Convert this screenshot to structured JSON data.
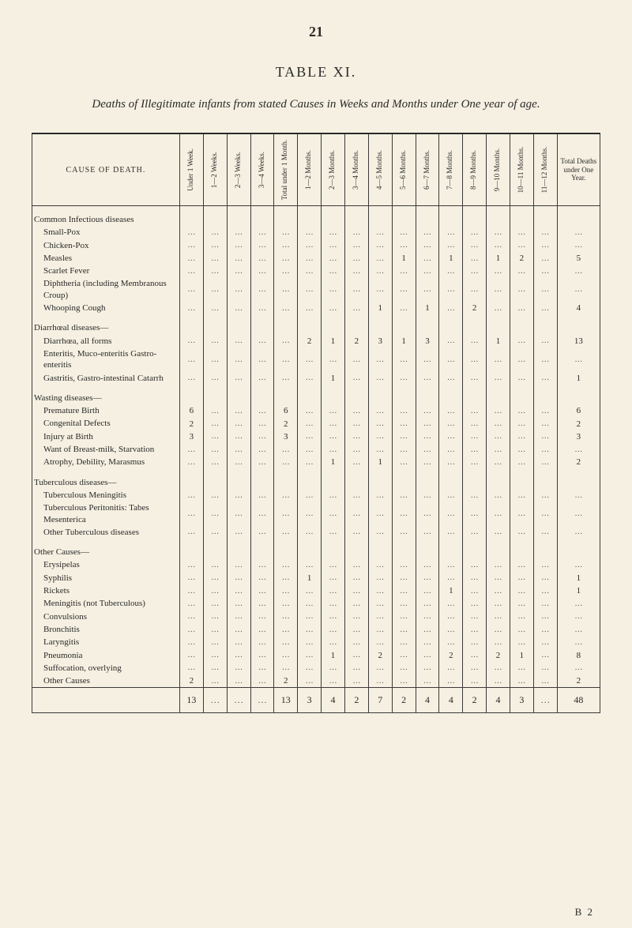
{
  "page_number": "21",
  "table_title": "TABLE XI.",
  "subtitle": "Deaths of Illegitimate infants from stated Causes in Weeks and Months under One year of age.",
  "footer": "B 2",
  "table": {
    "cause_header": "CAUSE OF DEATH.",
    "columns": [
      "Under 1 Week.",
      "1—2 Weeks.",
      "2—3 Weeks.",
      "3—4 Weeks.",
      "Total under 1 Month.",
      "1—2 Months.",
      "2—3 Months.",
      "3—4 Months.",
      "4—5 Months.",
      "5—6 Months.",
      "6—7 Months.",
      "7—8 Months.",
      "8—9 Months.",
      "9—10 Months.",
      "10—11 Months.",
      "11—12 Months."
    ],
    "total_col": "Total Deaths under One Year.",
    "groups": [
      {
        "label": "Common Infectious diseases",
        "rows": [
          {
            "label": "Small-Pox",
            "cells": [
              "…",
              "…",
              "…",
              "…",
              "…",
              "…",
              "…",
              "…",
              "…",
              "…",
              "…",
              "…",
              "…",
              "…",
              "…",
              "…"
            ],
            "total": "…"
          },
          {
            "label": "Chicken-Pox",
            "cells": [
              "…",
              "…",
              "…",
              "…",
              "…",
              "…",
              "…",
              "…",
              "…",
              "…",
              "…",
              "…",
              "…",
              "…",
              "…",
              "…"
            ],
            "total": "…"
          },
          {
            "label": "Measles",
            "cells": [
              "…",
              "…",
              "…",
              "…",
              "…",
              "…",
              "…",
              "…",
              "…",
              "1",
              "…",
              "1",
              "…",
              "1",
              "2",
              "…"
            ],
            "total": "5"
          },
          {
            "label": "Scarlet Fever",
            "cells": [
              "…",
              "…",
              "…",
              "…",
              "…",
              "…",
              "…",
              "…",
              "…",
              "…",
              "…",
              "…",
              "…",
              "…",
              "…",
              "…"
            ],
            "total": "…"
          },
          {
            "label": "Diphtheria (including Membranous Croup)",
            "cells": [
              "…",
              "…",
              "…",
              "…",
              "…",
              "…",
              "…",
              "…",
              "…",
              "…",
              "…",
              "…",
              "…",
              "…",
              "…",
              "…"
            ],
            "total": "…"
          },
          {
            "label": "Whooping Cough",
            "cells": [
              "…",
              "…",
              "…",
              "…",
              "…",
              "…",
              "…",
              "…",
              "1",
              "…",
              "1",
              "…",
              "2",
              "…",
              "…",
              "…"
            ],
            "total": "4"
          }
        ]
      },
      {
        "label": "Diarrhœal diseases—",
        "rows": [
          {
            "label": "Diarrhœa, all forms",
            "cells": [
              "…",
              "…",
              "…",
              "…",
              "…",
              "2",
              "1",
              "2",
              "3",
              "1",
              "3",
              "…",
              "…",
              "1",
              "…",
              "…"
            ],
            "total": "13"
          },
          {
            "label": "Enteritis, Muco-enteritis Gastro-enteritis",
            "cells": [
              "…",
              "…",
              "…",
              "…",
              "…",
              "…",
              "…",
              "…",
              "…",
              "…",
              "…",
              "…",
              "…",
              "…",
              "…",
              "…"
            ],
            "total": "…"
          },
          {
            "label": "Gastritis, Gastro-intestinal Catarrh",
            "cells": [
              "…",
              "…",
              "…",
              "…",
              "…",
              "…",
              "1",
              "…",
              "…",
              "…",
              "…",
              "…",
              "…",
              "…",
              "…",
              "…"
            ],
            "total": "1"
          }
        ]
      },
      {
        "label": "Wasting diseases—",
        "rows": [
          {
            "label": "Premature Birth",
            "cells": [
              "6",
              "…",
              "…",
              "…",
              "6",
              "…",
              "…",
              "…",
              "…",
              "…",
              "…",
              "…",
              "…",
              "…",
              "…",
              "…"
            ],
            "total": "6"
          },
          {
            "label": "Congenital Defects",
            "cells": [
              "2",
              "…",
              "…",
              "…",
              "2",
              "…",
              "…",
              "…",
              "…",
              "…",
              "…",
              "…",
              "…",
              "…",
              "…",
              "…"
            ],
            "total": "2"
          },
          {
            "label": "Injury at Birth",
            "cells": [
              "3",
              "…",
              "…",
              "…",
              "3",
              "…",
              "…",
              "…",
              "…",
              "…",
              "…",
              "…",
              "…",
              "…",
              "…",
              "…"
            ],
            "total": "3"
          },
          {
            "label": "Want of Breast-milk, Starvation",
            "cells": [
              "…",
              "…",
              "…",
              "…",
              "…",
              "…",
              "…",
              "…",
              "…",
              "…",
              "…",
              "…",
              "…",
              "…",
              "…",
              "…"
            ],
            "total": "…"
          },
          {
            "label": "Atrophy, Debility, Marasmus",
            "cells": [
              "…",
              "…",
              "…",
              "…",
              "…",
              "…",
              "1",
              "…",
              "1",
              "…",
              "…",
              "…",
              "…",
              "…",
              "…",
              "…"
            ],
            "total": "2"
          }
        ]
      },
      {
        "label": "Tuberculous diseases—",
        "rows": [
          {
            "label": "Tuberculous Meningitis",
            "cells": [
              "…",
              "…",
              "…",
              "…",
              "…",
              "…",
              "…",
              "…",
              "…",
              "…",
              "…",
              "…",
              "…",
              "…",
              "…",
              "…"
            ],
            "total": "…"
          },
          {
            "label": "Tuberculous Peritonitis: Tabes Mesenterica",
            "cells": [
              "…",
              "…",
              "…",
              "…",
              "…",
              "…",
              "…",
              "…",
              "…",
              "…",
              "…",
              "…",
              "…",
              "…",
              "…",
              "…"
            ],
            "total": "…"
          },
          {
            "label": "Other Tuberculous diseases",
            "cells": [
              "…",
              "…",
              "…",
              "…",
              "…",
              "…",
              "…",
              "…",
              "…",
              "…",
              "…",
              "…",
              "…",
              "…",
              "…",
              "…"
            ],
            "total": "…"
          }
        ]
      },
      {
        "label": "Other Causes—",
        "rows": [
          {
            "label": "Erysipelas",
            "cells": [
              "…",
              "…",
              "…",
              "…",
              "…",
              "…",
              "…",
              "…",
              "…",
              "…",
              "…",
              "…",
              "…",
              "…",
              "…",
              "…"
            ],
            "total": "…"
          },
          {
            "label": "Syphilis",
            "cells": [
              "…",
              "…",
              "…",
              "…",
              "…",
              "1",
              "…",
              "…",
              "…",
              "…",
              "…",
              "…",
              "…",
              "…",
              "…",
              "…"
            ],
            "total": "1"
          },
          {
            "label": "Rickets",
            "cells": [
              "…",
              "…",
              "…",
              "…",
              "…",
              "…",
              "…",
              "…",
              "…",
              "…",
              "…",
              "1",
              "…",
              "…",
              "…",
              "…"
            ],
            "total": "1"
          },
          {
            "label": "Meningitis (not Tuberculous)",
            "cells": [
              "…",
              "…",
              "…",
              "…",
              "…",
              "…",
              "…",
              "…",
              "…",
              "…",
              "…",
              "…",
              "…",
              "…",
              "…",
              "…"
            ],
            "total": "…"
          },
          {
            "label": "Convulsions",
            "cells": [
              "…",
              "…",
              "…",
              "…",
              "…",
              "…",
              "…",
              "…",
              "…",
              "…",
              "…",
              "…",
              "…",
              "…",
              "…",
              "…"
            ],
            "total": "…"
          },
          {
            "label": "Bronchitis",
            "cells": [
              "…",
              "…",
              "…",
              "…",
              "…",
              "…",
              "…",
              "…",
              "…",
              "…",
              "…",
              "…",
              "…",
              "…",
              "…",
              "…"
            ],
            "total": "…"
          },
          {
            "label": "Laryngitis",
            "cells": [
              "…",
              "…",
              "…",
              "…",
              "…",
              "…",
              "…",
              "…",
              "…",
              "…",
              "…",
              "…",
              "…",
              "…",
              "…",
              "…"
            ],
            "total": "…"
          },
          {
            "label": "Pneumonia",
            "cells": [
              "…",
              "…",
              "…",
              "…",
              "…",
              "…",
              "1",
              "…",
              "2",
              "…",
              "…",
              "2",
              "…",
              "2",
              "1",
              "…"
            ],
            "total": "8"
          },
          {
            "label": "Suffocation, overlying",
            "cells": [
              "…",
              "…",
              "…",
              "…",
              "…",
              "…",
              "…",
              "…",
              "…",
              "…",
              "…",
              "…",
              "…",
              "…",
              "…",
              "…"
            ],
            "total": "…"
          },
          {
            "label": "Other Causes",
            "cells": [
              "2",
              "…",
              "…",
              "…",
              "2",
              "…",
              "…",
              "…",
              "…",
              "…",
              "…",
              "…",
              "…",
              "…",
              "…",
              "…"
            ],
            "total": "2"
          }
        ]
      }
    ],
    "totals": {
      "cells": [
        "13",
        "…",
        "…",
        "…",
        "13",
        "3",
        "4",
        "2",
        "7",
        "2",
        "4",
        "4",
        "2",
        "4",
        "3",
        "…"
      ],
      "total": "48"
    }
  },
  "style": {
    "background": "#f5f0e1",
    "text_color": "#2a2a2a",
    "border_color": "#3a3a3a",
    "font_family": "Georgia, 'Times New Roman', serif"
  }
}
